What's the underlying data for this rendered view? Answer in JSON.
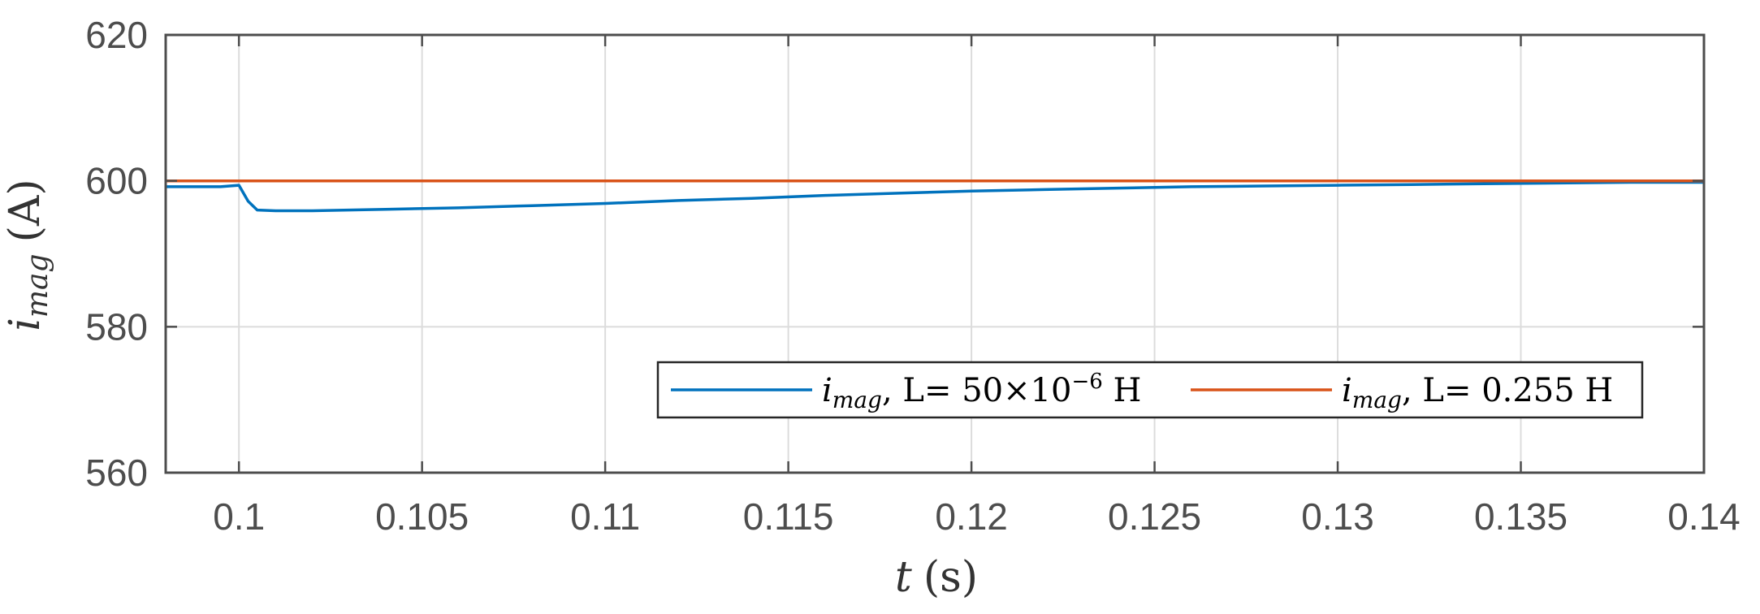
{
  "chart_data": {
    "type": "line",
    "title": "",
    "xlabel": {
      "main": "t",
      "unit": "(s)"
    },
    "ylabel": {
      "main": "i",
      "subscript": "mag",
      "unit": "(A)"
    },
    "xlim": [
      0.098,
      0.14
    ],
    "ylim": [
      560,
      620
    ],
    "xticks": [
      0.1,
      0.105,
      0.11,
      0.115,
      0.12,
      0.125,
      0.13,
      0.135,
      0.14
    ],
    "xtick_labels": [
      "0.1",
      "0.105",
      "0.11",
      "0.115",
      "0.12",
      "0.125",
      "0.13",
      "0.135",
      "0.14"
    ],
    "yticks": [
      560,
      580,
      600,
      620
    ],
    "ytick_labels": [
      "560",
      "580",
      "600",
      "620"
    ],
    "grid": true,
    "legend_position": "bottom-right",
    "series": [
      {
        "color": "#0072BD",
        "legend": {
          "symbol": "i",
          "subscript": "mag",
          "text": ", L= 50×10",
          "superscript": "−6",
          "unit": " H"
        },
        "x": [
          0.098,
          0.0995,
          0.1,
          0.10025,
          0.1005,
          0.101,
          0.102,
          0.104,
          0.106,
          0.108,
          0.11,
          0.112,
          0.114,
          0.116,
          0.118,
          0.12,
          0.122,
          0.124,
          0.126,
          0.128,
          0.13,
          0.132,
          0.134,
          0.136,
          0.138,
          0.14
        ],
        "y": [
          599.2,
          599.2,
          599.4,
          597.2,
          596.0,
          595.9,
          595.9,
          596.1,
          596.3,
          596.6,
          596.9,
          597.3,
          597.6,
          598.0,
          598.3,
          598.6,
          598.8,
          599.0,
          599.2,
          599.3,
          599.4,
          599.5,
          599.6,
          599.7,
          599.8,
          599.8
        ]
      },
      {
        "color": "#D95319",
        "legend": {
          "symbol": "i",
          "subscript": "mag",
          "text": ", L= 0.255",
          "superscript": "",
          "unit": " H"
        },
        "x": [
          0.098,
          0.14
        ],
        "y": [
          600,
          600
        ]
      }
    ]
  }
}
